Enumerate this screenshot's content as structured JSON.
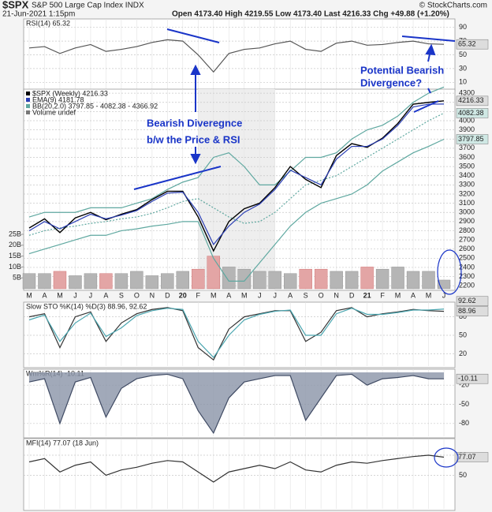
{
  "header": {
    "symbol": "$SPX",
    "name": "S&P 500 Large Cap Index INDX",
    "date": "21-Jun-2021 1:15pm",
    "ohlc": "Open 4173.40 High 4219.55 Low 4173.40 Last 4216.33 Chg +49.88 (+1.20%)",
    "source": "© StockCharts.com"
  },
  "annotations": [
    "Bearish Diveregnce",
    "b/w the Price & RSI",
    "Potential Bearish",
    "Divergence?"
  ],
  "chart_data": [
    {
      "type": "line",
      "title": "RSI(14) 65.32",
      "ylim": [
        0,
        100
      ],
      "yticks": [
        10,
        30,
        50,
        70,
        90
      ],
      "grid": true,
      "series": [
        {
          "color": "#555555",
          "values": [
            60,
            62,
            52,
            60,
            65,
            55,
            58,
            62,
            68,
            72,
            70,
            50,
            25,
            52,
            58,
            60,
            66,
            70,
            58,
            55,
            67,
            70,
            64,
            65,
            68,
            70,
            66,
            65.32
          ]
        }
      ]
    },
    {
      "type": "line",
      "title": "$SPX (Weekly) 4216.33",
      "categories": [
        "M",
        "A",
        "M",
        "J",
        "J",
        "A",
        "S",
        "O",
        "N",
        "D",
        "20",
        "F",
        "M",
        "A",
        "M",
        "J",
        "J",
        "A",
        "S",
        "O",
        "N",
        "D",
        "21",
        "F",
        "M",
        "A",
        "M",
        "J"
      ],
      "ylim": [
        2150,
        4370
      ],
      "yticks": [
        2200,
        2300,
        2400,
        2500,
        2600,
        2700,
        2800,
        2900,
        3000,
        3100,
        3200,
        3300,
        3400,
        3500,
        3600,
        3700,
        3800,
        3900,
        4000,
        4100,
        4200,
        4300
      ],
      "grid": true,
      "series": [
        {
          "name": "$SPX (Weekly) 4216.33",
          "color": "#000000",
          "values": [
            2830,
            2930,
            2780,
            2940,
            3000,
            2920,
            2980,
            3030,
            3140,
            3230,
            3230,
            2950,
            2580,
            2900,
            3040,
            3100,
            3270,
            3500,
            3360,
            3270,
            3620,
            3750,
            3710,
            3810,
            3970,
            4180,
            4200,
            4216.33
          ]
        },
        {
          "name": "EMA(9) 4181.78",
          "color": "#2b3fb5",
          "values": [
            2800,
            2900,
            2820,
            2900,
            2980,
            2930,
            2970,
            3020,
            3120,
            3210,
            3220,
            3000,
            2650,
            2850,
            3000,
            3090,
            3250,
            3460,
            3380,
            3300,
            3580,
            3720,
            3720,
            3800,
            3950,
            4150,
            4180,
            4181.78
          ]
        }
      ],
      "bands": {
        "name": "BB(20,2.0) 3797.85 - 4082.38 - 4366.92",
        "color": "#5fa8a0",
        "upper": [
          2950,
          3000,
          3000,
          3000,
          3050,
          3050,
          3050,
          3100,
          3150,
          3250,
          3330,
          3380,
          3600,
          3650,
          3500,
          3300,
          3300,
          3450,
          3600,
          3600,
          3650,
          3800,
          3900,
          3950,
          4050,
          4200,
          4300,
          4366.92
        ],
        "middle": [
          2750,
          2800,
          2830,
          2850,
          2880,
          2900,
          2930,
          2950,
          2990,
          3050,
          3120,
          3150,
          3050,
          2950,
          2880,
          2900,
          3000,
          3150,
          3300,
          3350,
          3400,
          3500,
          3600,
          3700,
          3800,
          3900,
          4000,
          4082.38
        ],
        "lower": [
          2550,
          2600,
          2650,
          2700,
          2750,
          2750,
          2800,
          2820,
          2850,
          2870,
          2900,
          2900,
          2500,
          2250,
          2250,
          2450,
          2650,
          2850,
          3000,
          3100,
          3150,
          3200,
          3300,
          3450,
          3550,
          3650,
          3720,
          3797.85
        ]
      },
      "volume": {
        "name": "Volume undef",
        "ylim": [
          0,
          25
        ],
        "yticks": [
          {
            "value": 5,
            "label": "5B"
          },
          {
            "value": 10,
            "label": "10B"
          },
          {
            "value": 15,
            "label": "15B"
          },
          {
            "value": 20,
            "label": "20B"
          },
          {
            "value": 25,
            "label": "25B"
          }
        ],
        "values": [
          7,
          7,
          8,
          6,
          7,
          7,
          7,
          8,
          6,
          7,
          8,
          9,
          15,
          10,
          9,
          8,
          8,
          7,
          9,
          9,
          8,
          8,
          10,
          9,
          10,
          8,
          8,
          4
        ]
      }
    },
    {
      "type": "line",
      "title": "Slow STO %K(14) %D(3) 88.96, 92.62",
      "ylim": [
        0,
        100
      ],
      "yticks": [
        20,
        50,
        80
      ],
      "grid": true,
      "series": [
        {
          "color": "#333333",
          "values": [
            80,
            85,
            30,
            80,
            88,
            40,
            70,
            85,
            92,
            95,
            90,
            30,
            10,
            60,
            80,
            85,
            90,
            90,
            40,
            55,
            90,
            95,
            80,
            85,
            88,
            92,
            90,
            88.96
          ]
        },
        {
          "color": "#4aa6b0",
          "values": [
            75,
            83,
            40,
            70,
            86,
            48,
            62,
            82,
            90,
            94,
            92,
            40,
            14,
            50,
            75,
            84,
            89,
            91,
            50,
            50,
            85,
            94,
            84,
            84,
            87,
            91,
            91,
            92.62
          ]
        }
      ]
    },
    {
      "type": "area",
      "title": "Wm%R(14) -10.11",
      "ylim": [
        -100,
        0
      ],
      "yticks": [
        -80,
        -50,
        -20
      ],
      "grid": true,
      "series": [
        {
          "color": "#3f4a63",
          "values": [
            -15,
            -10,
            -80,
            -15,
            -8,
            -70,
            -25,
            -10,
            -5,
            -3,
            -10,
            -60,
            -95,
            -40,
            -15,
            -10,
            -5,
            -5,
            -75,
            -40,
            -5,
            -3,
            -20,
            -10,
            -8,
            -5,
            -10,
            -10.11
          ]
        }
      ]
    },
    {
      "type": "line",
      "title": "MFI(14) 77.07 (18 Jun)",
      "ylim": [
        0,
        100
      ],
      "yticks": [
        50,
        80
      ],
      "grid": true,
      "series": [
        {
          "color": "#333333",
          "values": [
            70,
            75,
            55,
            65,
            70,
            50,
            58,
            62,
            68,
            72,
            70,
            55,
            40,
            55,
            60,
            65,
            60,
            70,
            58,
            55,
            65,
            70,
            68,
            72,
            75,
            78,
            80,
            77.07
          ]
        }
      ]
    }
  ]
}
